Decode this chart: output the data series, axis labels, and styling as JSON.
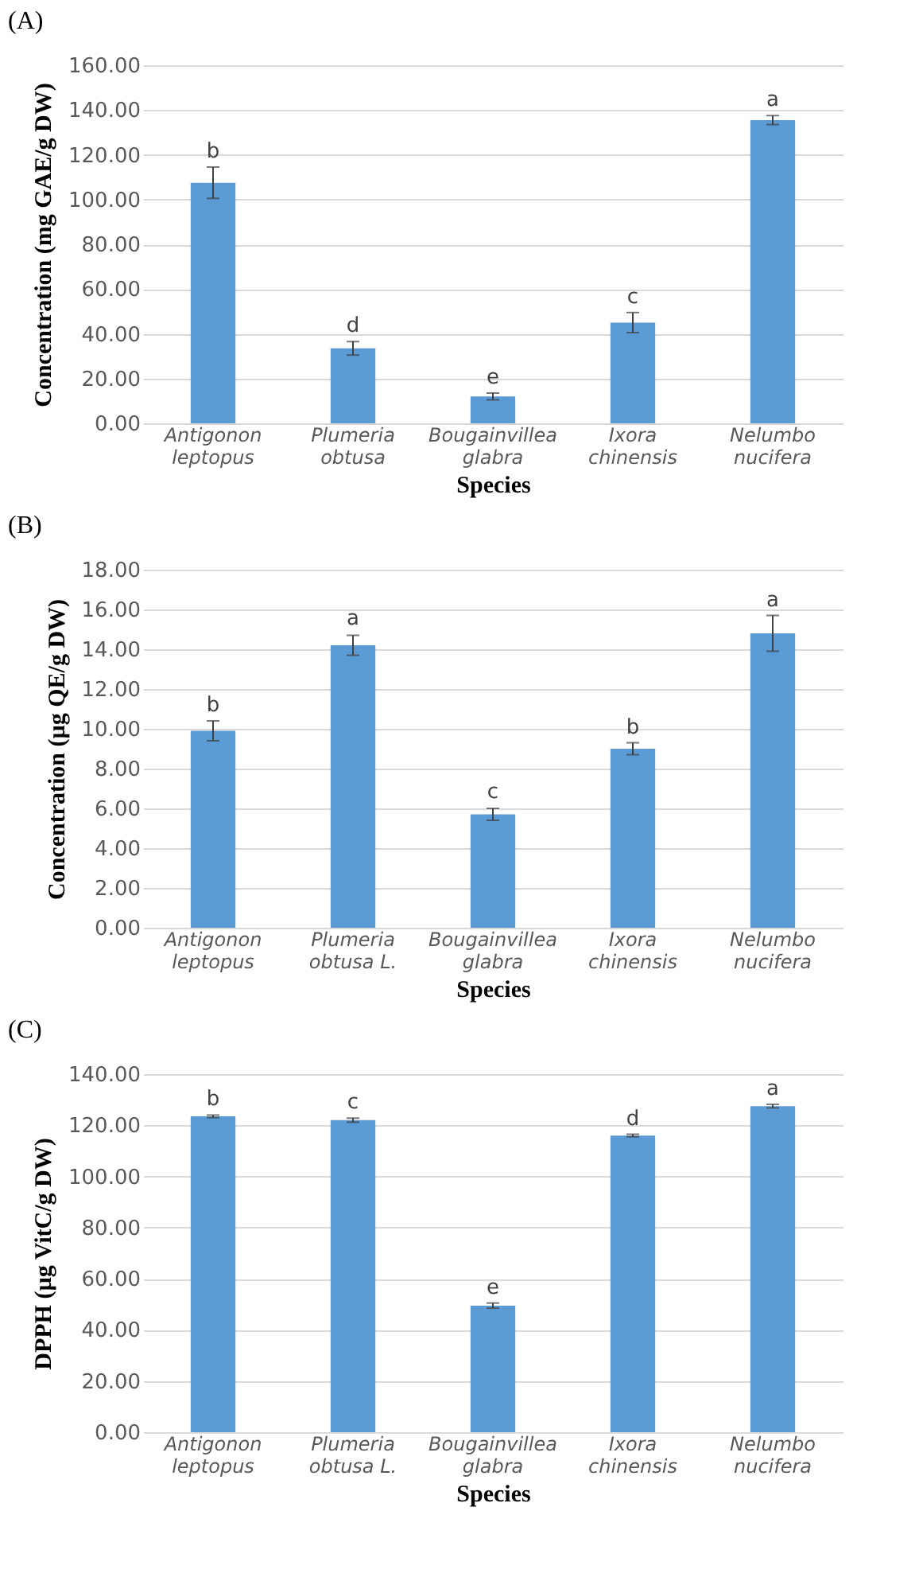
{
  "chart_data": [
    {
      "type": "bar",
      "title": "(A)",
      "xlabel": "Species",
      "ylabel": "Concentration (mg GAE/g DW)",
      "categories": [
        "Antigonon leptopus",
        "Plumeria obtusa",
        "Bougainvillea glabra",
        "Ixora chinensis",
        "Nelumbo nucifera"
      ],
      "values": [
        107.5,
        33.5,
        12,
        45,
        135.5
      ],
      "errors": [
        7,
        3,
        1.5,
        4.5,
        2
      ],
      "color": "#5b9bd5",
      "ylim": [
        0,
        160
      ],
      "yticks": [
        {
          "value": 0,
          "label": "0.00"
        },
        {
          "value": 20,
          "label": "20.00"
        },
        {
          "value": 40,
          "label": "40.00"
        },
        {
          "value": 60,
          "label": "60.00"
        },
        {
          "value": 80,
          "label": "80.00"
        },
        {
          "value": 100,
          "label": "100.00"
        },
        {
          "value": 120,
          "label": "120.00"
        },
        {
          "value": 140,
          "label": "140.00"
        },
        {
          "value": 160,
          "label": "160.00"
        }
      ],
      "grid": "y",
      "annotations": [
        {
          "text": "b",
          "x": "Antigonon leptopus",
          "y": 114.5
        },
        {
          "text": "d",
          "x": "Plumeria obtusa",
          "y": 36.5
        },
        {
          "text": "e",
          "x": "Bougainvillea glabra",
          "y": 13.5
        },
        {
          "text": "c",
          "x": "Ixora chinensis",
          "y": 49.5
        },
        {
          "text": "a",
          "x": "Nelumbo nucifera",
          "y": 137.5
        }
      ]
    },
    {
      "type": "bar",
      "title": "(B)",
      "xlabel": "Species",
      "ylabel": "Concentration (µg QE/g DW)",
      "categories": [
        "Antigonon leptopus",
        "Plumeria obtusa L.",
        "Bougainvillea glabra",
        "Ixora chinensis",
        "Nelumbo nucifera"
      ],
      "values": [
        9.9,
        14.2,
        5.7,
        9.0,
        14.8
      ],
      "errors": [
        0.5,
        0.5,
        0.3,
        0.3,
        0.9
      ],
      "color": "#5b9bd5",
      "ylim": [
        0,
        18
      ],
      "yticks": [
        {
          "value": 0,
          "label": "0.00"
        },
        {
          "value": 2,
          "label": "2.00"
        },
        {
          "value": 4,
          "label": "4.00"
        },
        {
          "value": 6,
          "label": "6.00"
        },
        {
          "value": 8,
          "label": "8.00"
        },
        {
          "value": 10,
          "label": "10.00"
        },
        {
          "value": 12,
          "label": "12.00"
        },
        {
          "value": 14,
          "label": "14.00"
        },
        {
          "value": 16,
          "label": "16.00"
        },
        {
          "value": 18,
          "label": "18.00"
        }
      ],
      "grid": "y",
      "annotations": [
        {
          "text": "b",
          "x": "Antigonon leptopus",
          "y": 10.4
        },
        {
          "text": "a",
          "x": "Plumeria obtusa L.",
          "y": 14.75
        },
        {
          "text": "c",
          "x": "Bougainvillea glabra",
          "y": 6.05
        },
        {
          "text": "b",
          "x": "Ixora chinensis",
          "y": 9.3
        },
        {
          "text": "a",
          "x": "Nelumbo nucifera",
          "y": 15.7
        }
      ]
    },
    {
      "type": "bar",
      "title": "(C)",
      "xlabel": "Species",
      "ylabel": "DPPH (µg VitC/g DW)",
      "categories": [
        "Antigonon leptopus",
        "Plumeria obtusa L.",
        "Bougainvillea glabra",
        "Ixora chinensis",
        "Nelumbo nucifera"
      ],
      "values": [
        123.5,
        122,
        49.5,
        116,
        127.5
      ],
      "errors": [
        0.5,
        0.8,
        1,
        0.5,
        0.7
      ],
      "color": "#5b9bd5",
      "ylim": [
        0,
        140
      ],
      "yticks": [
        {
          "value": 0,
          "label": "0.00"
        },
        {
          "value": 20,
          "label": "20.00"
        },
        {
          "value": 40,
          "label": "40.00"
        },
        {
          "value": 60,
          "label": "60.00"
        },
        {
          "value": 80,
          "label": "80.00"
        },
        {
          "value": 100,
          "label": "100.00"
        },
        {
          "value": 120,
          "label": "120.00"
        },
        {
          "value": 140,
          "label": "140.00"
        }
      ],
      "grid": "y",
      "annotations": [
        {
          "text": "b",
          "x": "Antigonon leptopus",
          "y": 124
        },
        {
          "text": "c",
          "x": "Plumeria obtusa L.",
          "y": 122.8
        },
        {
          "text": "e",
          "x": "Bougainvillea glabra",
          "y": 50.5
        },
        {
          "text": "d",
          "x": "Ixora chinensis",
          "y": 116.5
        },
        {
          "text": "a",
          "x": "Nelumbo nucifera",
          "y": 128.2
        }
      ]
    }
  ]
}
